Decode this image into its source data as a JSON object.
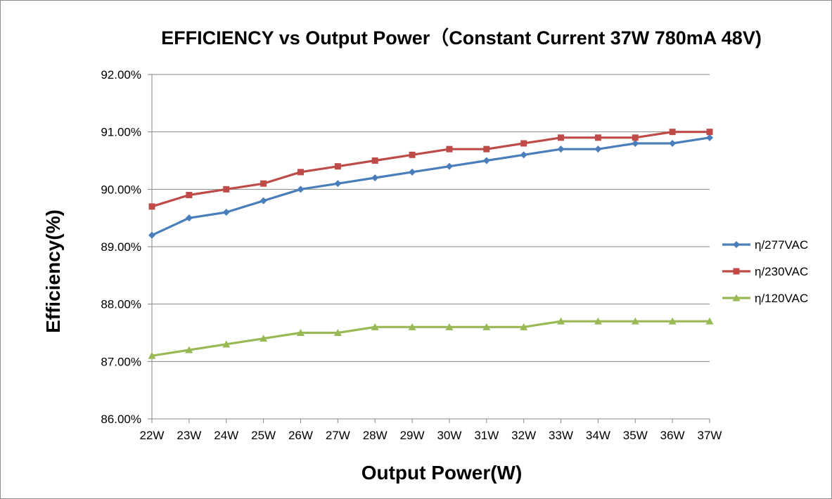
{
  "chart_data": {
    "type": "line",
    "title": "EFFICIENCY vs Output Power（Constant Current 37W 780mA 48V)",
    "xlabel": "Output Power(W)",
    "ylabel": "Efficiency(%)",
    "categories": [
      "22W",
      "23W",
      "24W",
      "25W",
      "26W",
      "27W",
      "28W",
      "29W",
      "30W",
      "31W",
      "32W",
      "33W",
      "34W",
      "35W",
      "36W",
      "37W"
    ],
    "ylim": [
      86.0,
      92.0
    ],
    "yticks": [
      "86.00%",
      "87.00%",
      "88.00%",
      "89.00%",
      "90.00%",
      "91.00%",
      "92.00%"
    ],
    "grid": true,
    "legend_position": "right",
    "series": [
      {
        "name": "η/277VAC",
        "color": "#4a7ebb",
        "marker": "diamond",
        "values": [
          89.2,
          89.5,
          89.6,
          89.8,
          90.0,
          90.1,
          90.2,
          90.3,
          90.4,
          90.5,
          90.6,
          90.7,
          90.7,
          90.8,
          90.8,
          90.9
        ]
      },
      {
        "name": "η/230VAC",
        "color": "#be4b48",
        "marker": "square",
        "values": [
          89.7,
          89.9,
          90.0,
          90.1,
          90.3,
          90.4,
          90.5,
          90.6,
          90.7,
          90.7,
          90.8,
          90.9,
          90.9,
          90.9,
          91.0,
          91.0
        ]
      },
      {
        "name": "η/120VAC",
        "color": "#98b954",
        "marker": "triangle",
        "values": [
          87.1,
          87.2,
          87.3,
          87.4,
          87.5,
          87.5,
          87.6,
          87.6,
          87.6,
          87.6,
          87.6,
          87.7,
          87.7,
          87.7,
          87.7,
          87.7
        ]
      }
    ]
  }
}
